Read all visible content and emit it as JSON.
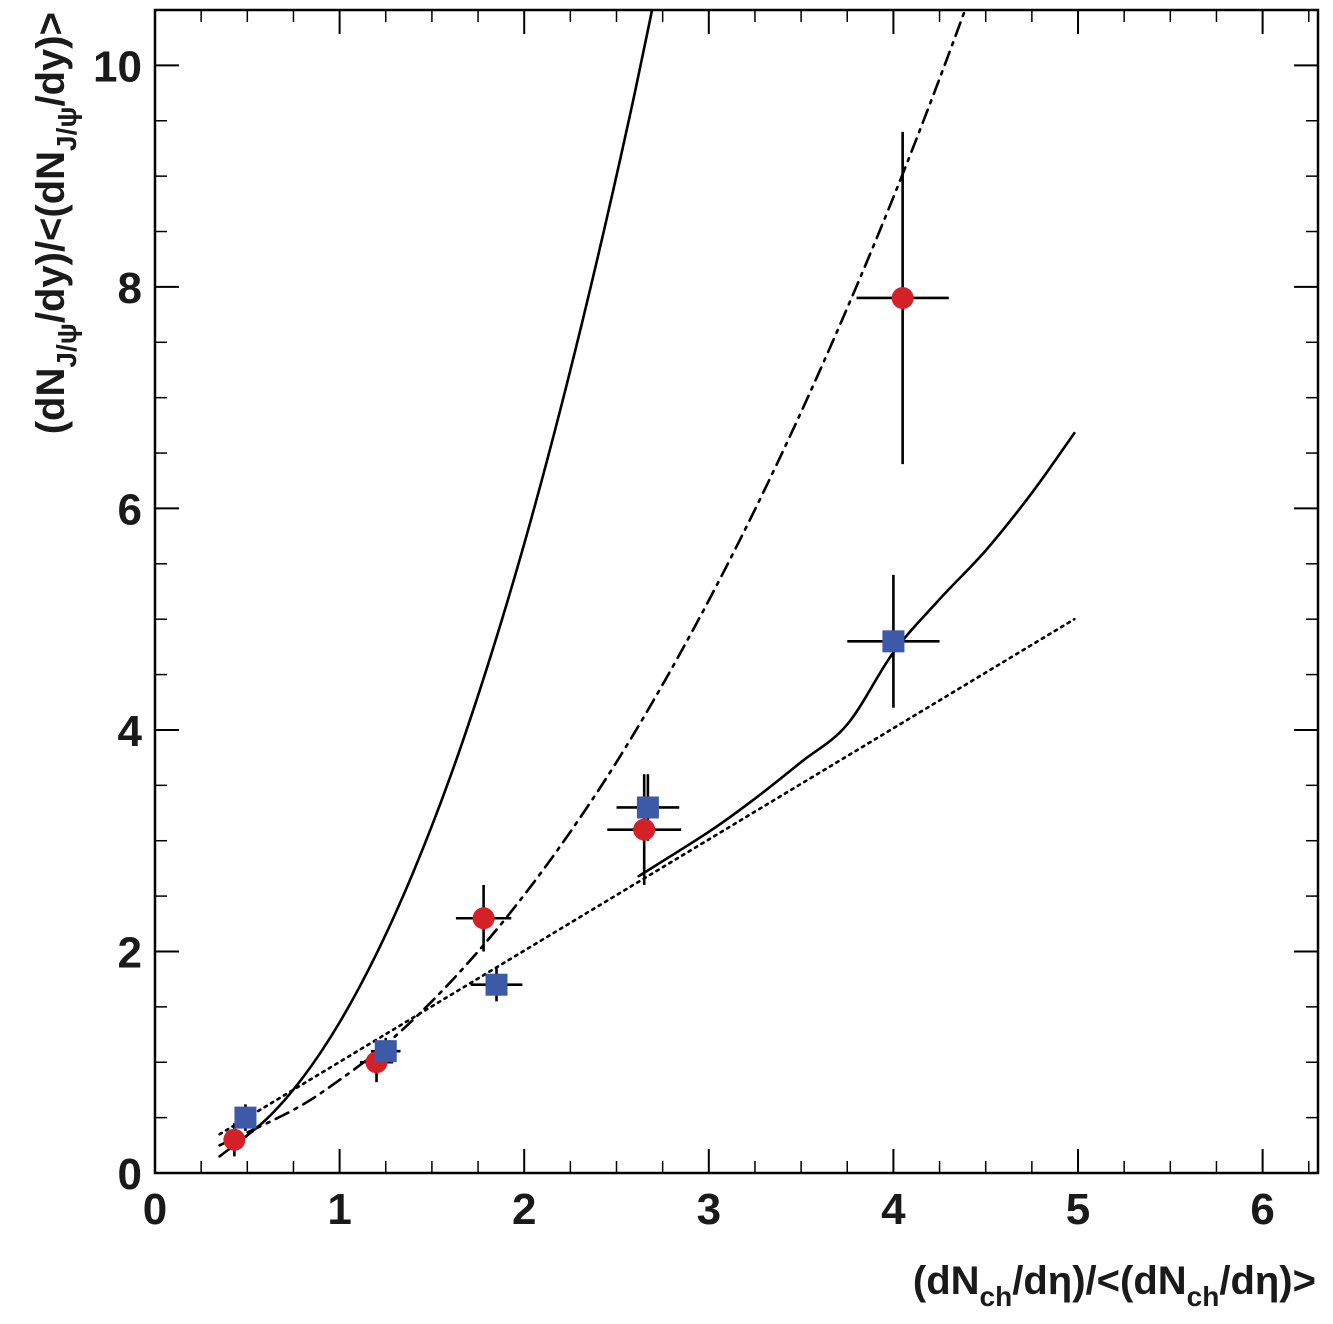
{
  "chart_data": {
    "type": "scatter",
    "title": "",
    "xlabel": {
      "prefix": "(dN",
      "sub1": "ch",
      "mid": "/dη)/<(dN",
      "sub2": "ch",
      "suffix": "/dη)>"
    },
    "ylabel": {
      "prefix": "(dN",
      "sub1": "J/ψ",
      "mid": "/dy)/<(dN",
      "sub2": "J/ψ",
      "suffix": "/dy)>"
    },
    "xlim": [
      0,
      6.3
    ],
    "ylim": [
      0,
      10.5
    ],
    "x_ticks": [
      0,
      1,
      2,
      3,
      4,
      5,
      6
    ],
    "x_tick_labels": [
      "0",
      "1",
      "2",
      "3",
      "4",
      "5",
      "6"
    ],
    "y_ticks": [
      0,
      2,
      4,
      6,
      8,
      10
    ],
    "y_tick_labels": [
      "0",
      "2",
      "4",
      "6",
      "8",
      "10"
    ],
    "grid": false,
    "series": [
      {
        "name": "circles",
        "marker": "circle",
        "color": "#d42027",
        "points": [
          {
            "x": 0.43,
            "y": 0.3,
            "xerr": 0.05,
            "yerr_lo": 0.15,
            "yerr_hi": 0.15
          },
          {
            "x": 1.2,
            "y": 1.0,
            "xerr": 0.09,
            "yerr_lo": 0.18,
            "yerr_hi": 0.18
          },
          {
            "x": 1.78,
            "y": 2.3,
            "xerr": 0.15,
            "yerr_lo": 0.3,
            "yerr_hi": 0.3
          },
          {
            "x": 2.65,
            "y": 3.1,
            "xerr": 0.2,
            "yerr_lo": 0.5,
            "yerr_hi": 0.5
          },
          {
            "x": 4.05,
            "y": 7.9,
            "xerr": 0.25,
            "yerr_lo": 1.5,
            "yerr_hi": 1.5
          }
        ]
      },
      {
        "name": "squares",
        "marker": "square",
        "color": "#3d5aa8",
        "points": [
          {
            "x": 0.49,
            "y": 0.5,
            "xerr": 0.05,
            "yerr_lo": 0.12,
            "yerr_hi": 0.12
          },
          {
            "x": 1.25,
            "y": 1.1,
            "xerr": 0.08,
            "yerr_lo": 0.12,
            "yerr_hi": 0.12
          },
          {
            "x": 1.85,
            "y": 1.7,
            "xerr": 0.14,
            "yerr_lo": 0.15,
            "yerr_hi": 0.15
          },
          {
            "x": 2.67,
            "y": 3.3,
            "xerr": 0.17,
            "yerr_lo": 0.3,
            "yerr_hi": 0.3
          },
          {
            "x": 4.0,
            "y": 4.8,
            "xerr": 0.25,
            "yerr_lo": 0.6,
            "yerr_hi": 0.6
          }
        ]
      }
    ],
    "curves": [
      {
        "name": "solid-steep",
        "style": "solid",
        "color": "#000000",
        "points": [
          [
            0.35,
            0.15
          ],
          [
            0.6,
            0.48
          ],
          [
            0.8,
            0.86
          ],
          [
            1.0,
            1.36
          ],
          [
            1.2,
            1.98
          ],
          [
            1.4,
            2.72
          ],
          [
            1.6,
            3.58
          ],
          [
            1.8,
            4.57
          ],
          [
            2.0,
            5.68
          ],
          [
            2.2,
            6.92
          ],
          [
            2.4,
            8.28
          ],
          [
            2.6,
            9.76
          ],
          [
            2.8,
            11.38
          ]
        ]
      },
      {
        "name": "dash-dot",
        "style": "dashdot",
        "color": "#000000",
        "points": [
          [
            0.35,
            0.25
          ],
          [
            0.75,
            0.57
          ],
          [
            1.0,
            0.84
          ],
          [
            1.25,
            1.16
          ],
          [
            1.5,
            1.55
          ],
          [
            1.75,
            2.0
          ],
          [
            2.0,
            2.51
          ],
          [
            2.25,
            3.08
          ],
          [
            2.5,
            3.71
          ],
          [
            2.75,
            4.41
          ],
          [
            3.0,
            5.17
          ],
          [
            3.25,
            5.99
          ],
          [
            3.5,
            6.87
          ],
          [
            3.75,
            7.81
          ],
          [
            4.0,
            8.81
          ],
          [
            4.25,
            9.88
          ],
          [
            4.5,
            11.01
          ]
        ]
      },
      {
        "name": "solid-lower",
        "style": "solid",
        "color": "#000000",
        "points": [
          [
            2.62,
            2.68
          ],
          [
            3.0,
            3.08
          ],
          [
            3.25,
            3.38
          ],
          [
            3.5,
            3.71
          ],
          [
            3.75,
            4.05
          ],
          [
            4.0,
            4.7
          ],
          [
            4.25,
            5.18
          ],
          [
            4.5,
            5.62
          ],
          [
            4.75,
            6.14
          ],
          [
            4.98,
            6.68
          ]
        ]
      },
      {
        "name": "dotted-linear",
        "style": "dotted",
        "color": "#000000",
        "points": [
          [
            0.35,
            0.35
          ],
          [
            4.98,
            5.0
          ]
        ]
      }
    ]
  }
}
